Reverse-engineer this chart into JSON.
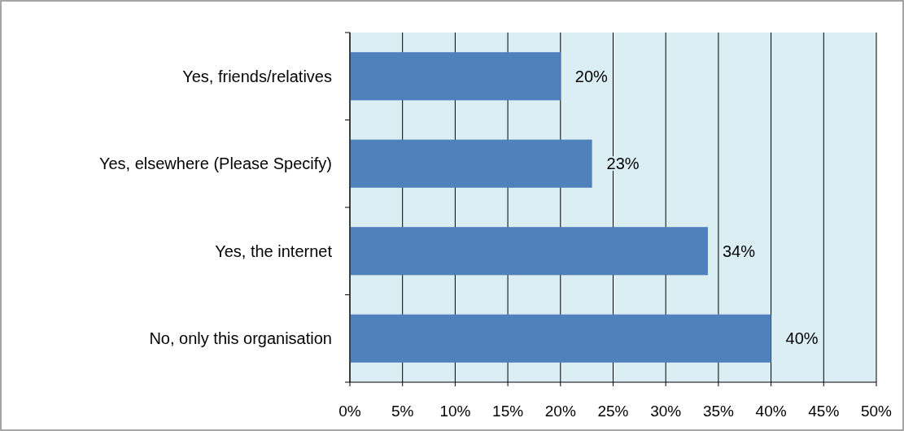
{
  "chart_data": {
    "type": "bar",
    "orientation": "horizontal",
    "categories": [
      "Yes, friends/relatives",
      "Yes, elsewhere (Please Specify)",
      "Yes, the internet",
      "No, only this organisation"
    ],
    "values": [
      20,
      23,
      34,
      40
    ],
    "value_labels": [
      "20%",
      "23%",
      "34%",
      "40%"
    ],
    "color": "#4f81bd",
    "xlim": [
      0,
      50
    ],
    "xticks": [
      {
        "value": 0,
        "label": "0%"
      },
      {
        "value": 5,
        "label": "5%"
      },
      {
        "value": 10,
        "label": "10%"
      },
      {
        "value": 15,
        "label": "15%"
      },
      {
        "value": 20,
        "label": "20%"
      },
      {
        "value": 25,
        "label": "25%"
      },
      {
        "value": 30,
        "label": "30%"
      },
      {
        "value": 35,
        "label": "35%"
      },
      {
        "value": 40,
        "label": "40%"
      },
      {
        "value": 45,
        "label": "45%"
      },
      {
        "value": 50,
        "label": "50%"
      }
    ],
    "grid": "x"
  }
}
